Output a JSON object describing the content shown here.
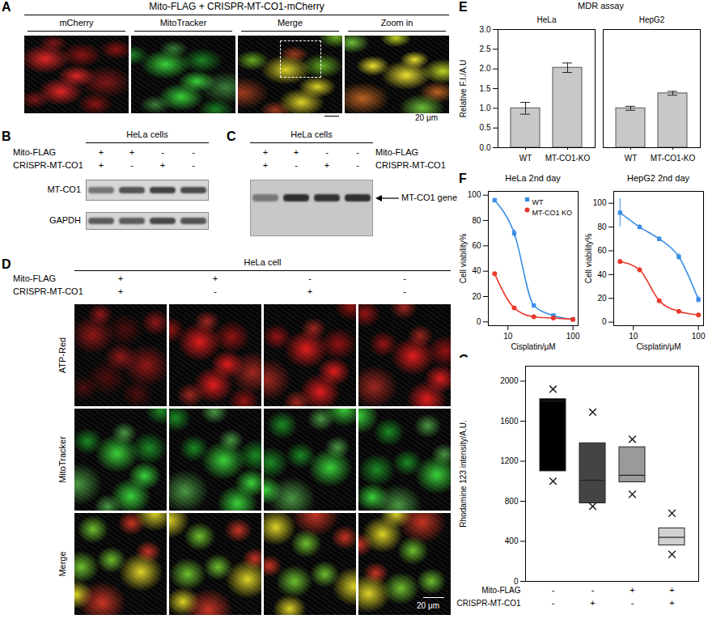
{
  "panels": {
    "A": {
      "letter": "A",
      "title": "Mito-FLAG + CRISPR-MT-CO1-mCherry",
      "columns": [
        "mCherry",
        "MitoTracker",
        "Merge",
        "Zoom in"
      ],
      "scale_bar": "20 μm"
    },
    "B": {
      "letter": "B",
      "cells": "HeLa cells",
      "conditions": [
        {
          "label": "Mito-FLAG",
          "signs": [
            "+",
            "+",
            "-",
            "-"
          ]
        },
        {
          "label": "CRISPR-MT-CO1",
          "signs": [
            "+",
            "-",
            "+",
            "-"
          ]
        }
      ],
      "rows": [
        "MT-CO1",
        "GAPDH"
      ]
    },
    "C": {
      "letter": "C",
      "cells": "HeLa cells",
      "conditions": [
        {
          "label": "Mito-FLAG",
          "signs": [
            "+",
            "+",
            "-",
            "-"
          ]
        },
        {
          "label": "CRISPR-MT-CO1",
          "signs": [
            "+",
            "-",
            "+",
            "-"
          ]
        }
      ],
      "band": "MT-CO1 gene"
    },
    "D": {
      "letter": "D",
      "cells": "HeLa cell",
      "conditions": [
        {
          "label": "Mito-FLAG",
          "signs": [
            "+",
            "+",
            "-",
            "-"
          ]
        },
        {
          "label": "CRISPR-MT-CO1",
          "signs": [
            "+",
            "-",
            "+",
            "-"
          ]
        }
      ],
      "rows": [
        "ATP-Red",
        "MitoTracker",
        "Merge"
      ],
      "scale_bar": "20 μm"
    }
  },
  "chart_data": [
    {
      "panel": "E",
      "type": "bar",
      "title": "MDR assay",
      "groups": [
        "HeLa",
        "HeLa",
        "HepG2",
        "HepG2"
      ],
      "categories": [
        "WT",
        "MT-CO1-KO",
        "WT",
        "MT-CO1-KO"
      ],
      "values": [
        1.0,
        2.03,
        1.0,
        1.38
      ],
      "errors": [
        0.15,
        0.12,
        0.05,
        0.05
      ],
      "color": "#c8c8c8",
      "y_label": "Relative F.I./A.U",
      "ylim": [
        0,
        3
      ],
      "yticks": [
        {
          "value": 0,
          "label": "0.0"
        },
        {
          "value": 0.5,
          "label": "0.5"
        },
        {
          "value": 1,
          "label": "1.0"
        },
        {
          "value": 1.5,
          "label": "1.5"
        },
        {
          "value": 2,
          "label": "2.0"
        },
        {
          "value": 2.5,
          "label": "2.5"
        },
        {
          "value": 3,
          "label": "3.0"
        }
      ]
    },
    {
      "panel": "F",
      "type": "line",
      "title": "HeLa 2nd day",
      "log": "x",
      "x_label": "Cisplatin/μM",
      "y_label": "Cell viability%",
      "x": [
        6.25,
        12.5,
        25,
        50,
        100
      ],
      "series": [
        {
          "name": "WT",
          "color": "#3a8ee6",
          "marker": "square",
          "values": [
            96,
            70,
            13,
            5,
            2
          ],
          "errors": [
            1.5,
            3,
            1,
            0.5,
            0.5
          ]
        },
        {
          "name": "MT-CO1 KO",
          "color": "#e8392b",
          "marker": "circle",
          "values": [
            38,
            11,
            4,
            3,
            2
          ],
          "errors": [
            1,
            0.5,
            0.5,
            0.5,
            0.5
          ]
        }
      ],
      "xlim": [
        5,
        120
      ],
      "xticks": [
        10,
        100
      ],
      "ylim": [
        -3,
        103
      ],
      "yticks": [
        0,
        20,
        40,
        60,
        80,
        100
      ],
      "legend": "top-right"
    },
    {
      "type": "line",
      "title": "HepG2 2nd day",
      "log": "x",
      "x_label": "Cisplatin/μM",
      "y_label": "Cell viability%",
      "x": [
        6.25,
        12.5,
        25,
        50,
        100
      ],
      "series": [
        {
          "name": "WT",
          "color": "#3a8ee6",
          "marker": "square",
          "values": [
            92,
            80,
            70,
            55,
            19
          ],
          "errors": [
            12,
            2,
            2,
            3,
            3
          ]
        },
        {
          "name": "MT-CO1 KO",
          "color": "#e8392b",
          "marker": "circle",
          "values": [
            51,
            44,
            18,
            9,
            6
          ],
          "errors": [
            2,
            2,
            1,
            1,
            1
          ]
        }
      ],
      "xlim": [
        5,
        120
      ],
      "xticks": [
        10,
        100
      ],
      "ylim": [
        -3,
        110
      ],
      "yticks": [
        0,
        20,
        40,
        60,
        80,
        100
      ]
    },
    {
      "panel": "G",
      "type": "box",
      "categories": [
        null,
        null,
        null,
        null
      ],
      "min": [
        1000,
        750,
        870,
        270
      ],
      "q1": [
        1100,
        780,
        990,
        360
      ],
      "median": [
        1800,
        1010,
        1060,
        440
      ],
      "q3": [
        1820,
        1380,
        1340,
        530
      ],
      "max": [
        1920,
        1690,
        1420,
        680
      ],
      "colors": [
        "#000000",
        "#444444",
        "#9a9a9a",
        "#d0d0d0"
      ],
      "marker": "times",
      "y_label": "Rhodamine 123 intensity/A.U.",
      "ylim": [
        0,
        2150
      ],
      "yticks": [
        0,
        400,
        800,
        1200,
        1600,
        2000
      ],
      "conditions": [
        {
          "label": "Mito-FLAG",
          "signs": [
            "-",
            "-",
            "+",
            "+"
          ]
        },
        {
          "label": "CRISPR-MT-CO1",
          "signs": [
            "-",
            "+",
            "-",
            "+"
          ]
        }
      ]
    }
  ]
}
